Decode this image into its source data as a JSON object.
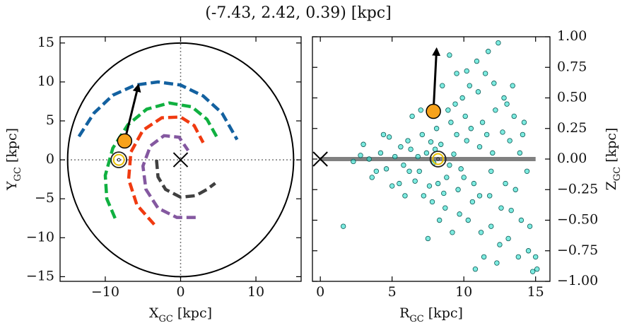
{
  "title": "(-7.43, 2.42, 0.39) [kpc]",
  "chart_data": [
    {
      "type": "line",
      "xlabel": [
        "X",
        "GC",
        " [kpc]"
      ],
      "ylabel": [
        "Y",
        "GC",
        " [kpc]"
      ],
      "xlim": [
        -16,
        16
      ],
      "ylim": [
        -15.6,
        15.8
      ],
      "xticks": [
        {
          "value": -10,
          "label": "−10"
        },
        0,
        10
      ],
      "yticks": [
        {
          "value": -15,
          "label": "−15"
        },
        {
          "value": -10,
          "label": "−10"
        },
        {
          "value": -5,
          "label": "−5"
        },
        0,
        5,
        10,
        15
      ],
      "zero_lines": true,
      "boundary_radius": 15,
      "series": [
        {
          "color": "#1361a0",
          "x": [
            -13.5,
            -11.5,
            -9,
            -6,
            -3,
            0,
            3,
            5.5,
            7.5
          ],
          "y": [
            3,
            6,
            8.3,
            9.6,
            10,
            9.6,
            8.2,
            6,
            2.6
          ]
        },
        {
          "color": "#10b040",
          "x": [
            -8.7,
            -9.8,
            -10,
            -9,
            -7,
            -4.5,
            -1.5,
            1.5,
            3.5,
            5
          ],
          "y": [
            -7.5,
            -5,
            -2,
            1.5,
            4.5,
            6.5,
            7.3,
            6.8,
            5.2,
            2.6
          ]
        },
        {
          "color": "#f03a10",
          "x": [
            -3.5,
            -5.8,
            -6.9,
            -6.6,
            -5,
            -2.5,
            0,
            1.8,
            3
          ],
          "y": [
            -8.3,
            -5.8,
            -2.5,
            1,
            3.8,
            5.4,
            5.5,
            4.4,
            2.2
          ]
        },
        {
          "color": "#8458a0",
          "x": [
            2,
            -0.5,
            -3,
            -4.6,
            -5,
            -4,
            -2.2,
            -0.2,
            1
          ],
          "y": [
            -7.4,
            -7.4,
            -6.2,
            -3.8,
            -0.8,
            1.8,
            3.1,
            2.9,
            1.2
          ]
        },
        {
          "color": "#404040",
          "x": [
            -3.2,
            -3,
            -2,
            0,
            2,
            3.5,
            4.6
          ],
          "y": [
            0,
            -2.2,
            -3.8,
            -4.8,
            -4.6,
            -3.8,
            -3
          ]
        }
      ],
      "position": {
        "x": -7.43,
        "y": 2.42,
        "color": "#f7a21b"
      },
      "velocity_tip": {
        "x": -5.6,
        "y": 9.6
      },
      "sun": {
        "x": -8.2,
        "y": 0,
        "color": "#e8c000"
      },
      "center": {
        "x": 0,
        "y": 0
      }
    },
    {
      "type": "scatter",
      "xlabel": [
        "R",
        "GC",
        " [kpc]"
      ],
      "ylabel": [
        "Z",
        "GC",
        " [kpc]"
      ],
      "xlim": [
        -0.55,
        16
      ],
      "ylim": [
        -1,
        1
      ],
      "xticks": [
        0,
        5,
        10,
        15
      ],
      "yticks": [
        {
          "value": -1,
          "label": "−1.00"
        },
        {
          "value": -0.75,
          "label": "−0.75"
        },
        {
          "value": -0.5,
          "label": "−0.50"
        },
        {
          "value": -0.25,
          "label": "−0.25"
        },
        {
          "value": 0,
          "label": "0.00"
        },
        {
          "value": 0.25,
          "label": "0.25"
        },
        {
          "value": 0.5,
          "label": "0.50"
        },
        {
          "value": 0.75,
          "label": "0.75"
        },
        {
          "value": 1,
          "label": "1.00"
        }
      ],
      "color": "#38e0d0",
      "edgecolor": "#0a5a55",
      "x": [
        5.2,
        5.8,
        6.3,
        6.9,
        7.4,
        7.9,
        8.4,
        8.8,
        9.3,
        9.8,
        10.2,
        10.7,
        11.1,
        6.1,
        6.6,
        7.1,
        7.6,
        8.1,
        8.6,
        9.1,
        9.6,
        10.1,
        10.6,
        11.3,
        11.8,
        12.2,
        12.6,
        13.0,
        4.2,
        4.6,
        3.9,
        3.4,
        2.8,
        2.3,
        1.6,
        4.8,
        5.5,
        9.9,
        10.4,
        11.0,
        11.5,
        12.1,
        12.8,
        13.5,
        9.4,
        8.9,
        10.9,
        11.7,
        12.4,
        10.2,
        9.0,
        9.5,
        8.5,
        13.2,
        13.9,
        14.4,
        13.6,
        12.9,
        14.1,
        10.3,
        11.2,
        11.9,
        12.5,
        13.1,
        13.8,
        14.5,
        14.8,
        15.1,
        12.3,
        11.4,
        9.7,
        8.7,
        7.8,
        7.2,
        6.4,
        7.0,
        5.9,
        8.3,
        9.2,
        10.8,
        7.5,
        14.6,
        13.3,
        14.0,
        15.0,
        12.7,
        11.6,
        11.9,
        12.0,
        10.5,
        9.0,
        8.0,
        6.8,
        5.6,
        3.0,
        3.6,
        4.4,
        5.0,
        13.4,
        14.2,
        11.1,
        10.0,
        6.2,
        7.7,
        8.2,
        9.5
      ],
      "y": [
        0.02,
        -0.05,
        0.08,
        -0.1,
        0.05,
        -0.03,
        0.12,
        -0.15,
        0.04,
        -0.08,
        0.15,
        -0.2,
        0.1,
        0.15,
        -0.18,
        0.2,
        -0.22,
        0.25,
        -0.28,
        0.3,
        -0.25,
        0.35,
        -0.35,
        0.3,
        -0.3,
        0.4,
        -0.4,
        0.45,
        0.05,
        -0.08,
        -0.1,
        0.0,
        0.03,
        -0.02,
        -0.55,
        0.18,
        -0.2,
        0.5,
        0.6,
        0.55,
        0.7,
        0.62,
        0.5,
        0.35,
        0.45,
        0.4,
        0.8,
        0.88,
        0.95,
        0.72,
        0.85,
        0.7,
        0.6,
        0.15,
        0.05,
        -0.1,
        -0.25,
        -0.2,
        0.2,
        -0.5,
        -0.6,
        -0.55,
        -0.7,
        -0.65,
        -0.8,
        -0.75,
        -0.92,
        -0.9,
        -0.85,
        -0.8,
        -0.45,
        -0.4,
        -0.35,
        -0.3,
        0.35,
        0.4,
        -0.3,
        -0.5,
        -0.6,
        -0.9,
        -0.65,
        -0.55,
        -0.42,
        -0.5,
        -0.8,
        0.22,
        0.2,
        -0.1,
        0.05,
        0.25,
        -0.05,
        0.08,
        0.02,
        0.1,
        0.12,
        -0.15,
        0.2,
        -0.22,
        0.6,
        0.3,
        -0.3,
        -0.15,
        -0.1,
        0.14,
        -0.2,
        0.2
      ],
      "disk": {
        "x": [
          0,
          15
        ],
        "y": [
          0,
          0
        ],
        "color": "#808080"
      },
      "position": {
        "x": 7.88,
        "y": 0.39,
        "color": "#f7a21b"
      },
      "velocity_tip": {
        "x": 8.1,
        "y": 0.9
      },
      "sun": {
        "x": 8.2,
        "y": 0,
        "color": "#e8c000"
      },
      "center": {
        "x": 0,
        "y": 0
      }
    }
  ]
}
